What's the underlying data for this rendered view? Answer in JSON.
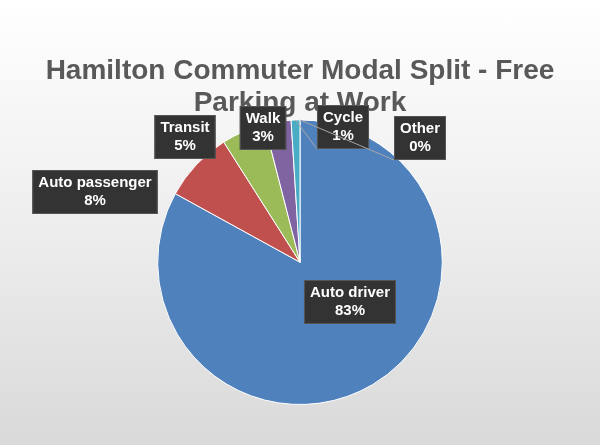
{
  "chart_data": {
    "type": "pie",
    "title": "Hamilton Commuter Modal Split - Free Parking at Work",
    "categories": [
      "Auto driver",
      "Auto passenger",
      "Transit",
      "Walk",
      "Cycle",
      "Other"
    ],
    "values": [
      83,
      8,
      5,
      3,
      1,
      0
    ],
    "value_labels": [
      "83%",
      "8%",
      "5%",
      "3%",
      "1%",
      "0%"
    ],
    "colors": [
      "#4f81bd",
      "#c0504d",
      "#9bbb59",
      "#8064a2",
      "#4bacc6",
      "#f79646"
    ],
    "data_labels": true
  }
}
